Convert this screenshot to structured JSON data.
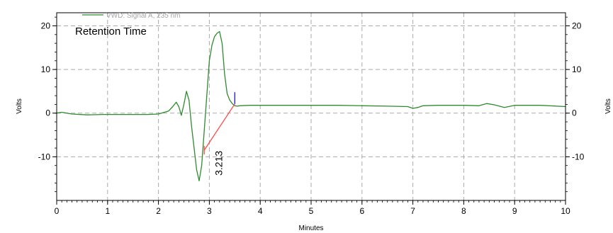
{
  "chart_data": {
    "type": "line",
    "xlabel": "Minutes",
    "ylabel": "Volts",
    "ylabel_right": "Volts",
    "xlim": [
      0,
      10
    ],
    "ylim": [
      -20,
      23
    ],
    "x_ticks": [
      "0",
      "1",
      "2",
      "3",
      "4",
      "5",
      "6",
      "7",
      "8",
      "9",
      "10"
    ],
    "y_ticks": [
      "20",
      "10",
      "0",
      "-10"
    ],
    "y_tick_values": [
      20,
      10,
      0,
      -10
    ],
    "y_ticks_right": [
      "20",
      "10",
      "0",
      "-10"
    ],
    "grid": true,
    "legend_position": "top-left",
    "annotation": "Retention Time",
    "colors": {
      "signal": "#2e8b2e",
      "baseline": "#ff4040",
      "marker": "#0000ff",
      "grid": "#aaaaaa",
      "axis": "#000000"
    },
    "series": [
      {
        "name": "VWD: Signal A, 235 nm",
        "x": [
          0,
          0.1,
          0.3,
          0.6,
          0.9,
          1.2,
          1.5,
          1.8,
          2.0,
          2.2,
          2.28,
          2.35,
          2.4,
          2.45,
          2.5,
          2.55,
          2.6,
          2.65,
          2.7,
          2.75,
          2.8,
          2.85,
          2.9,
          2.95,
          3.0,
          3.05,
          3.1,
          3.15,
          3.2,
          3.25,
          3.3,
          3.35,
          3.4,
          3.45,
          3.5,
          3.55,
          3.6,
          3.8,
          4.0,
          4.5,
          5.0,
          5.5,
          6.0,
          6.5,
          6.9,
          7.0,
          7.1,
          7.2,
          7.5,
          8.0,
          8.3,
          8.45,
          8.6,
          8.8,
          9.0,
          9.5,
          10.0
        ],
        "y": [
          0,
          0.2,
          -0.2,
          -0.4,
          -0.3,
          -0.3,
          -0.3,
          -0.3,
          -0.2,
          0.5,
          1.5,
          2.5,
          1.5,
          -0.5,
          2.0,
          5.0,
          3.0,
          -3.0,
          -8.0,
          -13.0,
          -15.5,
          -12.0,
          -4.0,
          4.0,
          12.0,
          15.5,
          17.5,
          18.3,
          18.7,
          16.0,
          9.0,
          4.5,
          3.0,
          2.2,
          1.7,
          1.6,
          1.7,
          1.8,
          1.8,
          1.8,
          1.8,
          1.8,
          1.7,
          1.6,
          1.5,
          1.1,
          1.3,
          1.7,
          1.8,
          1.8,
          1.7,
          2.2,
          1.9,
          1.3,
          1.8,
          1.8,
          1.5
        ]
      }
    ],
    "peaks": [
      {
        "label": "3.213",
        "baseline_start": [
          2.9,
          -8.5
        ],
        "baseline_end": [
          3.5,
          2.1
        ],
        "marker_x": 3.5,
        "marker_y": [
          2.1,
          4.8
        ]
      }
    ]
  }
}
